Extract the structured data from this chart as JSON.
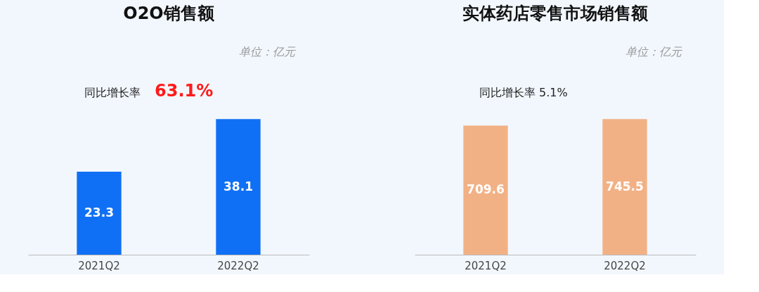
{
  "chart_data": [
    {
      "type": "bar",
      "title": "O2O销售额",
      "subtitle": "单位：亿元",
      "categories": [
        "2021Q2",
        "2022Q2"
      ],
      "values": [
        23.3,
        38.1
      ],
      "color": "#1070f5",
      "data_labels": true,
      "grid": false,
      "tick_labels": "x",
      "annotations": [
        "同比增长率",
        "63.1%"
      ]
    },
    {
      "type": "bar",
      "title": "实体药店零售市场销售额",
      "subtitle": "单位：亿元",
      "categories": [
        "2021Q2",
        "2022Q2"
      ],
      "values": [
        709.6,
        745.5
      ],
      "color": "#f2b185",
      "data_labels": true,
      "grid": false,
      "tick_labels": "x",
      "annotations": [
        "同比增长率 5.1%"
      ]
    }
  ]
}
